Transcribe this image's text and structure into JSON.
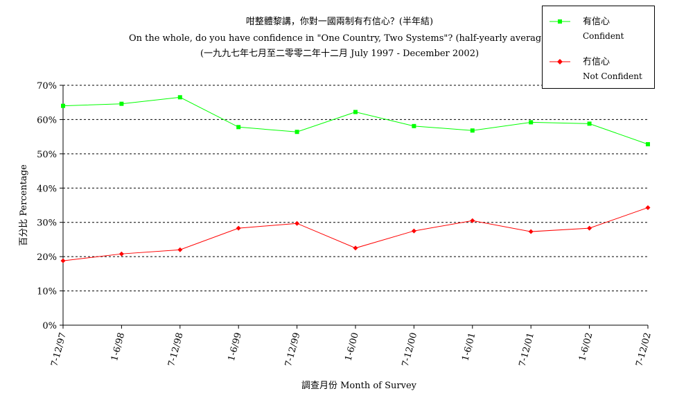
{
  "chart_data": {
    "type": "line",
    "title": "咁整體黎講，你對一國兩制有冇信心？(半年結)",
    "subtitle": "On the whole, do you have confidence in \"One Country, Two Systems\"? (half-yearly average)",
    "subtitle2": "(一九九七年七月至二零零二年十二月 July 1997 - December 2002)",
    "xlabel": "調查月份 Month of Survey",
    "ylabel": "百分比 Percentage",
    "categories": [
      "7-12/97",
      "1-6/98",
      "7-12/98",
      "1-6/99",
      "7-12/99",
      "1-6/00",
      "7-12/00",
      "1-6/01",
      "7-12/01",
      "1-6/02",
      "7-12/02"
    ],
    "y_ticks": [
      "0%",
      "10%",
      "20%",
      "30%",
      "40%",
      "50%",
      "60%",
      "70%"
    ],
    "ylim": [
      0,
      70
    ],
    "grid": "horizontal dashed",
    "legend_position": "top-right",
    "series": [
      {
        "name": "有信心",
        "name_en": "Confident",
        "color": "#00ff00",
        "marker": "square",
        "values": [
          64,
          64.6,
          66.5,
          57.8,
          56.4,
          62.2,
          58.1,
          56.8,
          59.2,
          58.8,
          52.8
        ]
      },
      {
        "name": "冇信心",
        "name_en": "Not Confident",
        "color": "#ff0000",
        "marker": "diamond",
        "values": [
          18.8,
          20.8,
          22,
          28.3,
          29.7,
          22.5,
          27.5,
          30.5,
          27.3,
          28.3,
          34.3
        ]
      }
    ]
  }
}
